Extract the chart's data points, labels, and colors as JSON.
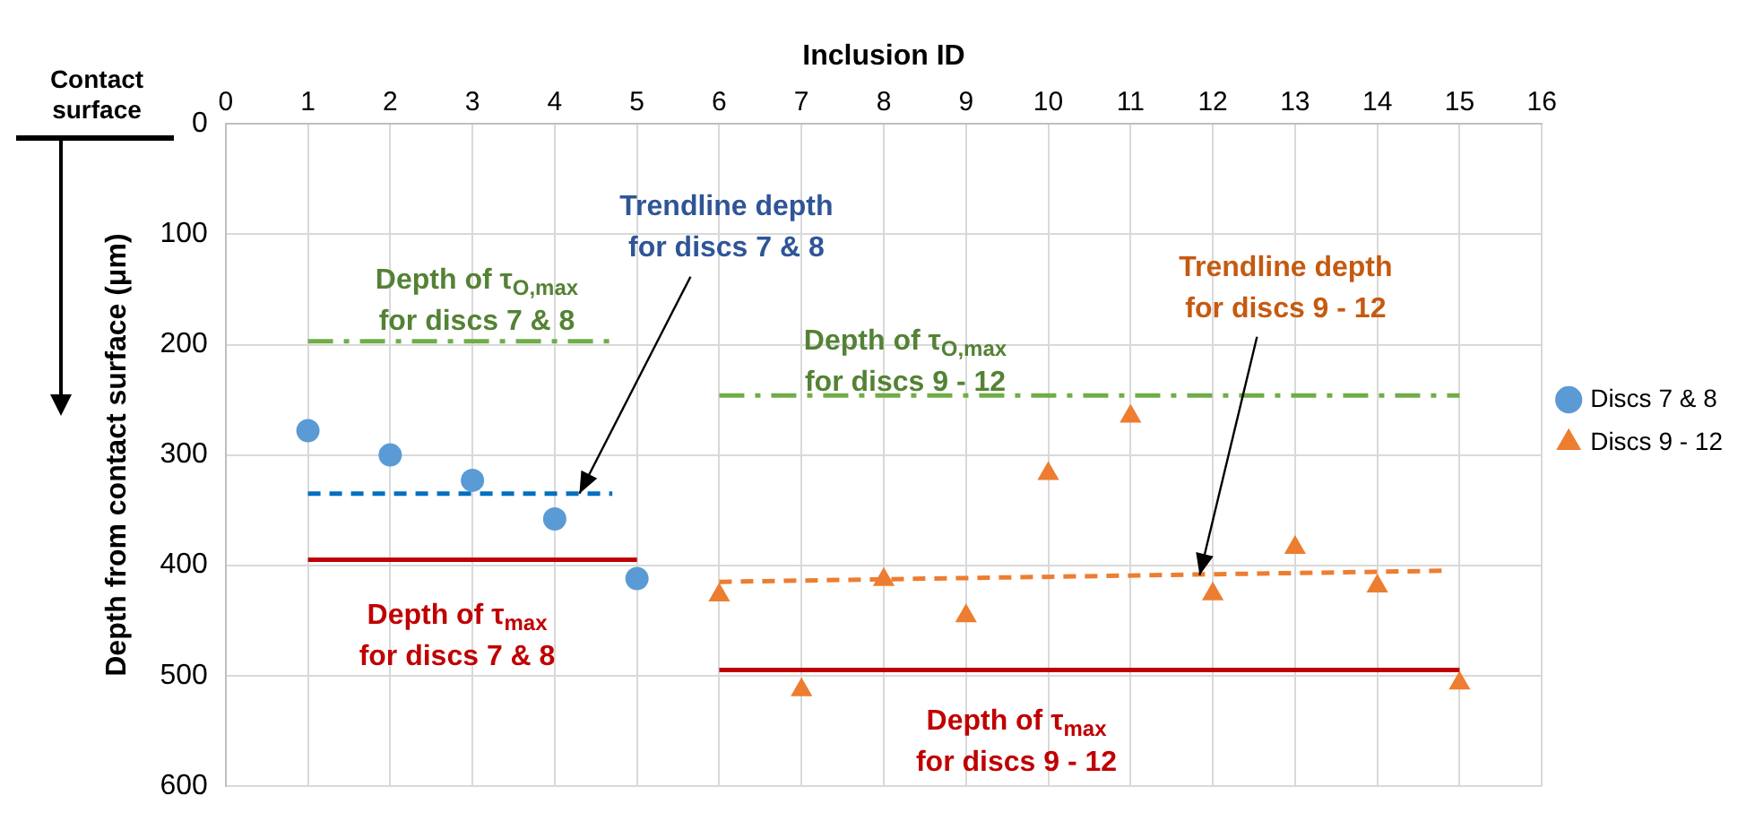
{
  "chart_data": {
    "type": "scatter",
    "xlabel": "Inclusion ID",
    "ylabel": "Depth from contact surface (μm)",
    "xlim": [
      0,
      16
    ],
    "xticks": [
      0,
      1,
      2,
      3,
      4,
      5,
      6,
      7,
      8,
      9,
      10,
      11,
      12,
      13,
      14,
      15,
      16
    ],
    "ylim": [
      600,
      0
    ],
    "yticks": [
      0,
      100,
      200,
      300,
      400,
      500,
      600
    ],
    "grid": true,
    "legend": "right",
    "series": [
      {
        "name": "Discs 7 & 8",
        "type": "scatter",
        "marker": "circle",
        "color": "#5b9bd5",
        "x": [
          1,
          2,
          3,
          4,
          5
        ],
        "values": [
          278,
          300,
          323,
          358,
          412
        ]
      },
      {
        "name": "Discs 9 - 12",
        "type": "scatter",
        "marker": "triangle",
        "color": "#ed7d31",
        "x": [
          6,
          7,
          8,
          9,
          10,
          11,
          12,
          13,
          14,
          15
        ],
        "values": [
          427,
          513,
          413,
          446,
          317,
          265,
          426,
          384,
          419,
          507
        ]
      },
      {
        "type": "line",
        "marker": "none",
        "line_style": "dashed",
        "color": "#0070c0",
        "x": [
          1,
          4.7
        ],
        "values": [
          335,
          335
        ]
      },
      {
        "type": "line",
        "marker": "none",
        "line_style": "dashed",
        "color": "#ed7d31",
        "x": [
          6,
          14.8
        ],
        "values": [
          415,
          405
        ]
      },
      {
        "type": "line",
        "marker": "none",
        "line_style": "dashdot",
        "color": "#70ad47",
        "x": [
          1,
          4.7
        ],
        "values": [
          197,
          197
        ]
      },
      {
        "type": "line",
        "marker": "none",
        "line_style": "dashdot",
        "color": "#70ad47",
        "x": [
          6,
          15
        ],
        "values": [
          246,
          246
        ]
      },
      {
        "type": "line",
        "marker": "none",
        "line_style": "solid",
        "color": "#c00000",
        "x": [
          1,
          5
        ],
        "values": [
          395,
          395
        ]
      },
      {
        "type": "line",
        "marker": "none",
        "line_style": "solid",
        "color": "#c00000",
        "x": [
          6,
          15
        ],
        "values": [
          495,
          495
        ]
      }
    ],
    "annotations": [
      "Depth of τ$_{O,max}$\nfor discs 7 & 8",
      {
        "text": "Trendline depth\nfor discs 7 & 8",
        "x": 4.3,
        "y": 335
      },
      "Depth of τ$_{O,max}$\nfor discs 9 - 12",
      {
        "text": "Trendline depth\nfor discs 9 - 12",
        "x": 11.84,
        "y": 409
      },
      "Depth of τ$_{max}$\nfor discs 7 & 8",
      "Depth of τ$_{max}$\nfor discs 9 - 12",
      "Contact\nsurface"
    ]
  }
}
